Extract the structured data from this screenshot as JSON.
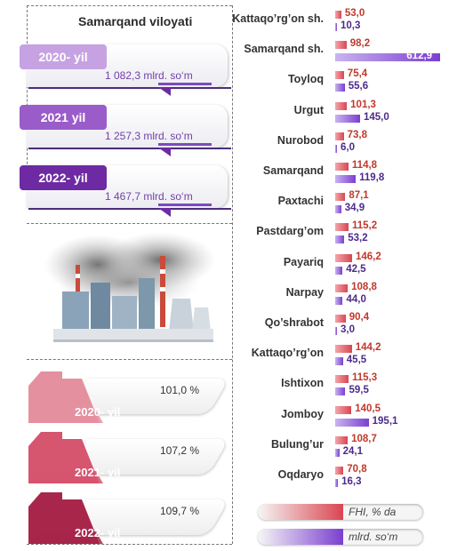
{
  "region_title": "Samarqand viloyati",
  "volume_cards": [
    {
      "year": "2020- yil",
      "value": "1 082,3 mlrd. so‘m",
      "color": "#c6a2e2"
    },
    {
      "year": "2021 yil",
      "value": "1 257,3 mlrd. so‘m",
      "color": "#9a5cc9"
    },
    {
      "year": "2022- yil",
      "value": "1 467,7 mlrd. so‘m",
      "color": "#6d2aa3"
    }
  ],
  "growth_cards": [
    {
      "year": "2020- yil",
      "value": "101,0 %",
      "color": "#e5909f"
    },
    {
      "year": "2021- yil",
      "value": "107,2 %",
      "color": "#d6556f"
    },
    {
      "year": "2022- yil",
      "value": "109,7 %",
      "color": "#a8264a"
    }
  ],
  "legend": {
    "index_label": "FHI, % da",
    "volume_label": "mlrd. so‘m"
  },
  "chart_data": {
    "type": "bar",
    "categories": [
      "Kattaqo’rg’on sh.",
      "Samarqand sh.",
      "Toyloq",
      "Urgut",
      "Nurobod",
      "Samarqand",
      "Paxtachi",
      "Pastdarg’om",
      "Payariq",
      "Narpay",
      "Qo’shrabot",
      "Kattaqo’rg’on",
      "Ishtixon",
      "Jomboy",
      "Bulung’ur",
      "Oqdaryo"
    ],
    "series": [
      {
        "name": "FHI, % da",
        "values": [
          53.0,
          98.2,
          75.4,
          101.3,
          73.8,
          114.8,
          87.1,
          115.2,
          146.2,
          108.8,
          90.4,
          144.2,
          115.3,
          140.5,
          108.7,
          70.8
        ],
        "labels": [
          "53,0",
          "98,2",
          "75,4",
          "101,3",
          "73,8",
          "114,8",
          "87,1",
          "115,2",
          "146,2",
          "108,8",
          "90,4",
          "144,2",
          "115,3",
          "140,5",
          "108,7",
          "70,8"
        ]
      },
      {
        "name": "mlrd. so‘m",
        "values": [
          10.3,
          612.9,
          55.6,
          145.0,
          6.0,
          119.8,
          34.9,
          53.2,
          42.5,
          44.0,
          3.0,
          45.5,
          59.5,
          195.1,
          24.1,
          16.3
        ],
        "labels": [
          "10,3",
          "612,9",
          "55,6",
          "145,0",
          "6,0",
          "119,8",
          "34,9",
          "53,2",
          "42,5",
          "44,0",
          "3,0",
          "45,5",
          "59,5",
          "195,1",
          "24,1",
          "16,3"
        ]
      }
    ]
  }
}
